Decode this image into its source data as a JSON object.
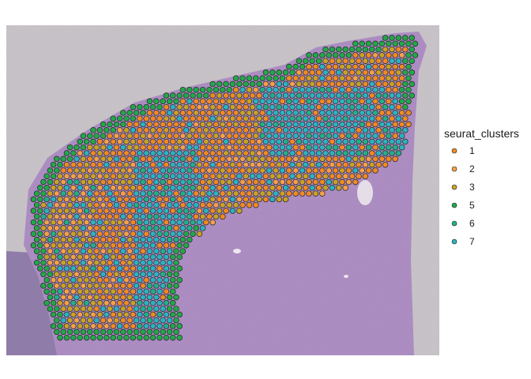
{
  "chart_data": {
    "type": "scatter",
    "title": "",
    "xlabel": "",
    "ylabel": "",
    "grid": false,
    "legend_placement": "right",
    "legend": {
      "title": "seurat_clusters",
      "entries": [
        {
          "label": "1",
          "color": "#f08a24"
        },
        {
          "label": "2",
          "color": "#f5a04a"
        },
        {
          "label": "3",
          "color": "#c9a227"
        },
        {
          "label": "5",
          "color": "#22a84a"
        },
        {
          "label": "6",
          "color": "#21b08a"
        },
        {
          "label": "7",
          "color": "#2bb3c0"
        }
      ]
    },
    "background": "H&E tissue image",
    "dot_outline": "#222222"
  }
}
